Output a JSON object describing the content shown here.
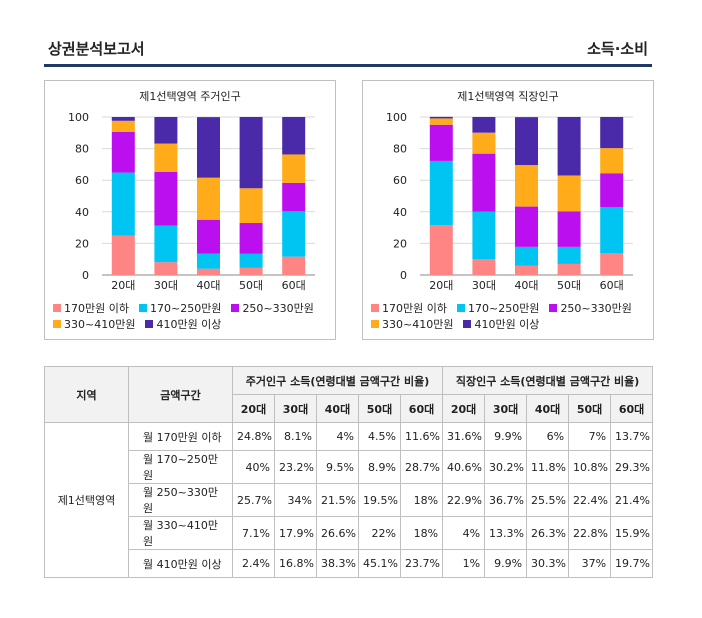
{
  "header": {
    "title": "상권분석보고서",
    "section": "소득·소비"
  },
  "colors": [
    "#ff8585",
    "#00c5f3",
    "#bb0ff0",
    "#ffab1a",
    "#4a2aa8"
  ],
  "chart_data": [
    {
      "type": "bar",
      "stacked": true,
      "title": "제1선택영역 주거인구",
      "categories": [
        "20대",
        "30대",
        "40대",
        "50대",
        "60대"
      ],
      "ylim": [
        0,
        100
      ],
      "yticks": [
        0,
        20,
        40,
        60,
        80,
        100
      ],
      "grid": true,
      "legend_position": "bottom",
      "series": [
        {
          "name": "170만원 이하",
          "values": [
            24.8,
            8.1,
            4,
            4.5,
            11.6
          ]
        },
        {
          "name": "170~250만원",
          "values": [
            40,
            23.2,
            9.5,
            8.9,
            28.7
          ]
        },
        {
          "name": "250~330만원",
          "values": [
            25.7,
            34,
            21.5,
            19.5,
            18
          ]
        },
        {
          "name": "330~410만원",
          "values": [
            7.1,
            17.9,
            26.6,
            22,
            18
          ]
        },
        {
          "name": "410만원 이상",
          "values": [
            2.4,
            16.8,
            38.3,
            45.1,
            23.7
          ]
        }
      ]
    },
    {
      "type": "bar",
      "stacked": true,
      "title": "제1선택영역 직장인구",
      "categories": [
        "20대",
        "30대",
        "40대",
        "50대",
        "60대"
      ],
      "ylim": [
        0,
        100
      ],
      "yticks": [
        0,
        20,
        40,
        60,
        80,
        100
      ],
      "grid": true,
      "legend_position": "bottom",
      "series": [
        {
          "name": "170만원 이하",
          "values": [
            31.6,
            9.9,
            6,
            7,
            13.7
          ]
        },
        {
          "name": "170~250만원",
          "values": [
            40.6,
            30.2,
            11.8,
            10.8,
            29.3
          ]
        },
        {
          "name": "250~330만원",
          "values": [
            22.9,
            36.7,
            25.5,
            22.4,
            21.4
          ]
        },
        {
          "name": "330~410만원",
          "values": [
            4,
            13.3,
            26.3,
            22.8,
            15.9
          ]
        },
        {
          "name": "410만원 이상",
          "values": [
            1,
            9.9,
            30.3,
            37,
            19.7
          ]
        }
      ]
    }
  ],
  "table": {
    "col_region": "지역",
    "col_band": "금액구간",
    "group_resident": "주거인구 소득(연령대별 금액구간 비율)",
    "group_worker": "직장인구 소득(연령대별 금액구간 비율)",
    "age_headers": [
      "20대",
      "30대",
      "40대",
      "50대",
      "60대"
    ],
    "region": "제1선택영역",
    "rows": [
      {
        "band": "월 170만원 이하",
        "resident": [
          "24.8%",
          "8.1%",
          "4%",
          "4.5%",
          "11.6%"
        ],
        "worker": [
          "31.6%",
          "9.9%",
          "6%",
          "7%",
          "13.7%"
        ]
      },
      {
        "band": "월 170~250만원",
        "resident": [
          "40%",
          "23.2%",
          "9.5%",
          "8.9%",
          "28.7%"
        ],
        "worker": [
          "40.6%",
          "30.2%",
          "11.8%",
          "10.8%",
          "29.3%"
        ]
      },
      {
        "band": "월 250~330만원",
        "resident": [
          "25.7%",
          "34%",
          "21.5%",
          "19.5%",
          "18%"
        ],
        "worker": [
          "22.9%",
          "36.7%",
          "25.5%",
          "22.4%",
          "21.4%"
        ]
      },
      {
        "band": "월 330~410만원",
        "resident": [
          "7.1%",
          "17.9%",
          "26.6%",
          "22%",
          "18%"
        ],
        "worker": [
          "4%",
          "13.3%",
          "26.3%",
          "22.8%",
          "15.9%"
        ]
      },
      {
        "band": "월 410만원 이상",
        "resident": [
          "2.4%",
          "16.8%",
          "38.3%",
          "45.1%",
          "23.7%"
        ],
        "worker": [
          "1%",
          "9.9%",
          "30.3%",
          "37%",
          "19.7%"
        ]
      }
    ]
  }
}
